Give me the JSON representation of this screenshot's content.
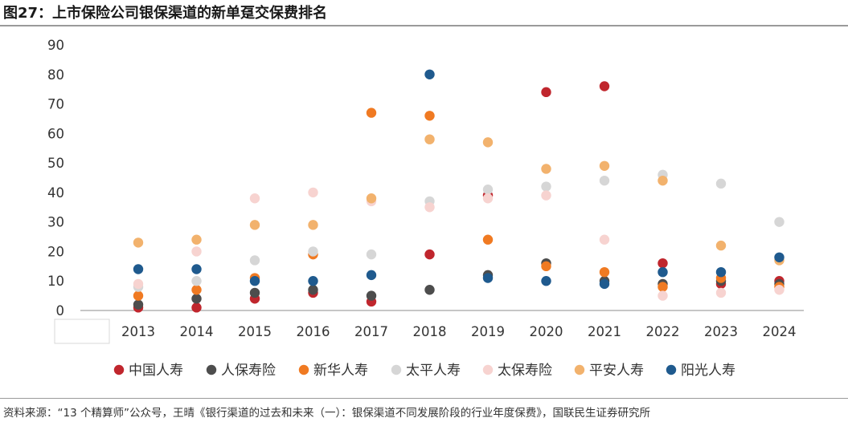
{
  "title": "图27：上市保险公司银保渠道的新单趸交保费排名",
  "source": "资料来源：“13 个精算师”公众号，王晴《银行渠道的过去和未来（一）：银保渠道不同发展阶段的行业年度保费》，国联民生证券研究所",
  "chart_data": {
    "type": "scatter",
    "title": "图27：上市保险公司银保渠道的新单趸交保费排名",
    "xlabel": "",
    "ylabel": "",
    "ylim": [
      0,
      90
    ],
    "yticks": [
      0,
      10,
      20,
      30,
      40,
      50,
      60,
      70,
      80,
      90
    ],
    "categories": [
      "2013",
      "2014",
      "2015",
      "2016",
      "2017",
      "2018",
      "2019",
      "2020",
      "2021",
      "2022",
      "2023",
      "2024"
    ],
    "grid": false,
    "legend_position": "bottom",
    "series": [
      {
        "name": "中国人寿",
        "color": "#c0262d",
        "values": [
          1,
          1,
          4,
          6,
          3,
          19,
          39,
          74,
          76,
          16,
          9,
          10
        ]
      },
      {
        "name": "人保寿险",
        "color": "#4d4d4d",
        "values": [
          2,
          4,
          6,
          7,
          5,
          7,
          12,
          16,
          10,
          9,
          10,
          9
        ]
      },
      {
        "name": "新华人寿",
        "color": "#f07a22",
        "values": [
          5,
          7,
          11,
          19,
          67,
          66,
          24,
          15,
          13,
          8,
          11,
          8
        ]
      },
      {
        "name": "太平人寿",
        "color": "#d6d6d6",
        "values": [
          8,
          10,
          17,
          20,
          19,
          37,
          41,
          42,
          44,
          46,
          43,
          30
        ]
      },
      {
        "name": "太保寿险",
        "color": "#f7d3d0",
        "values": [
          9,
          20,
          38,
          40,
          37,
          35,
          38,
          39,
          24,
          5,
          6,
          7
        ]
      },
      {
        "name": "平安人寿",
        "color": "#f2b26d",
        "values": [
          23,
          24,
          29,
          29,
          38,
          58,
          57,
          48,
          49,
          44,
          22,
          17
        ]
      },
      {
        "name": "阳光人寿",
        "color": "#1f5a8e",
        "values": [
          14,
          14,
          10,
          10,
          12,
          80,
          11,
          10,
          9,
          13,
          13,
          18
        ]
      }
    ]
  }
}
